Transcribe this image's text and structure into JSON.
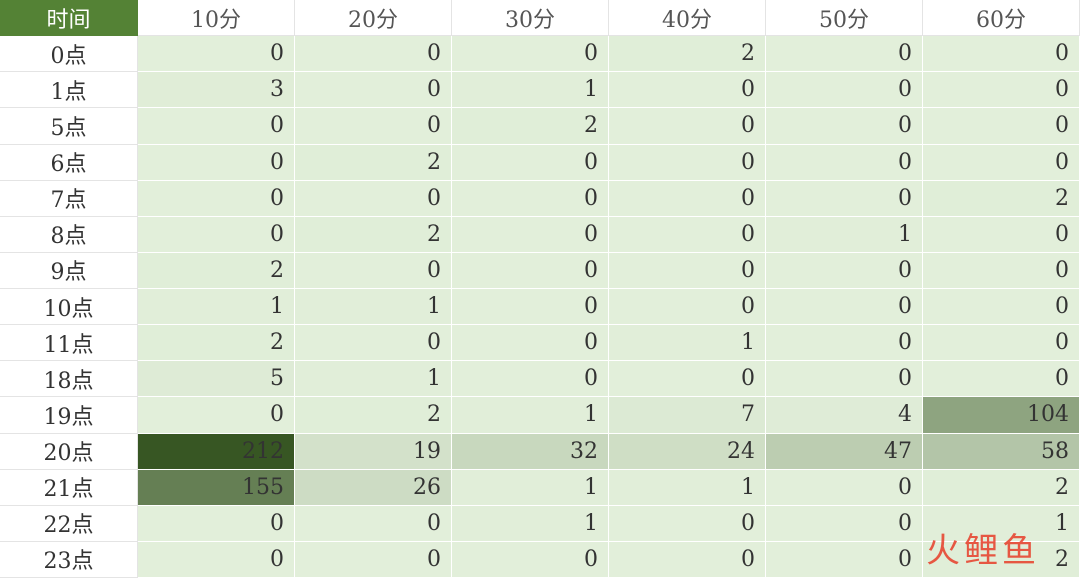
{
  "table": {
    "header": [
      "时间",
      "10分",
      "20分",
      "30分",
      "40分",
      "50分",
      "60分"
    ],
    "rows": [
      {
        "label": "0点",
        "values": [
          0,
          0,
          0,
          2,
          0,
          0
        ]
      },
      {
        "label": "1点",
        "values": [
          3,
          0,
          1,
          0,
          0,
          0
        ]
      },
      {
        "label": "5点",
        "values": [
          0,
          0,
          2,
          0,
          0,
          0
        ]
      },
      {
        "label": "6点",
        "values": [
          0,
          2,
          0,
          0,
          0,
          0
        ]
      },
      {
        "label": "7点",
        "values": [
          0,
          0,
          0,
          0,
          0,
          2
        ]
      },
      {
        "label": "8点",
        "values": [
          0,
          2,
          0,
          0,
          1,
          0
        ]
      },
      {
        "label": "9点",
        "values": [
          2,
          0,
          0,
          0,
          0,
          0
        ]
      },
      {
        "label": "10点",
        "values": [
          1,
          1,
          0,
          0,
          0,
          0
        ]
      },
      {
        "label": "11点",
        "values": [
          2,
          0,
          0,
          1,
          0,
          0
        ]
      },
      {
        "label": "18点",
        "values": [
          5,
          1,
          0,
          0,
          0,
          0
        ]
      },
      {
        "label": "19点",
        "values": [
          0,
          2,
          1,
          7,
          4,
          104
        ]
      },
      {
        "label": "20点",
        "values": [
          212,
          19,
          32,
          24,
          47,
          58
        ]
      },
      {
        "label": "21点",
        "values": [
          155,
          26,
          1,
          1,
          0,
          2
        ]
      },
      {
        "label": "22点",
        "values": [
          0,
          0,
          1,
          0,
          0,
          1
        ]
      },
      {
        "label": "23点",
        "values": [
          0,
          0,
          0,
          0,
          0,
          2
        ]
      }
    ]
  },
  "watermark": "火鲤鱼"
}
